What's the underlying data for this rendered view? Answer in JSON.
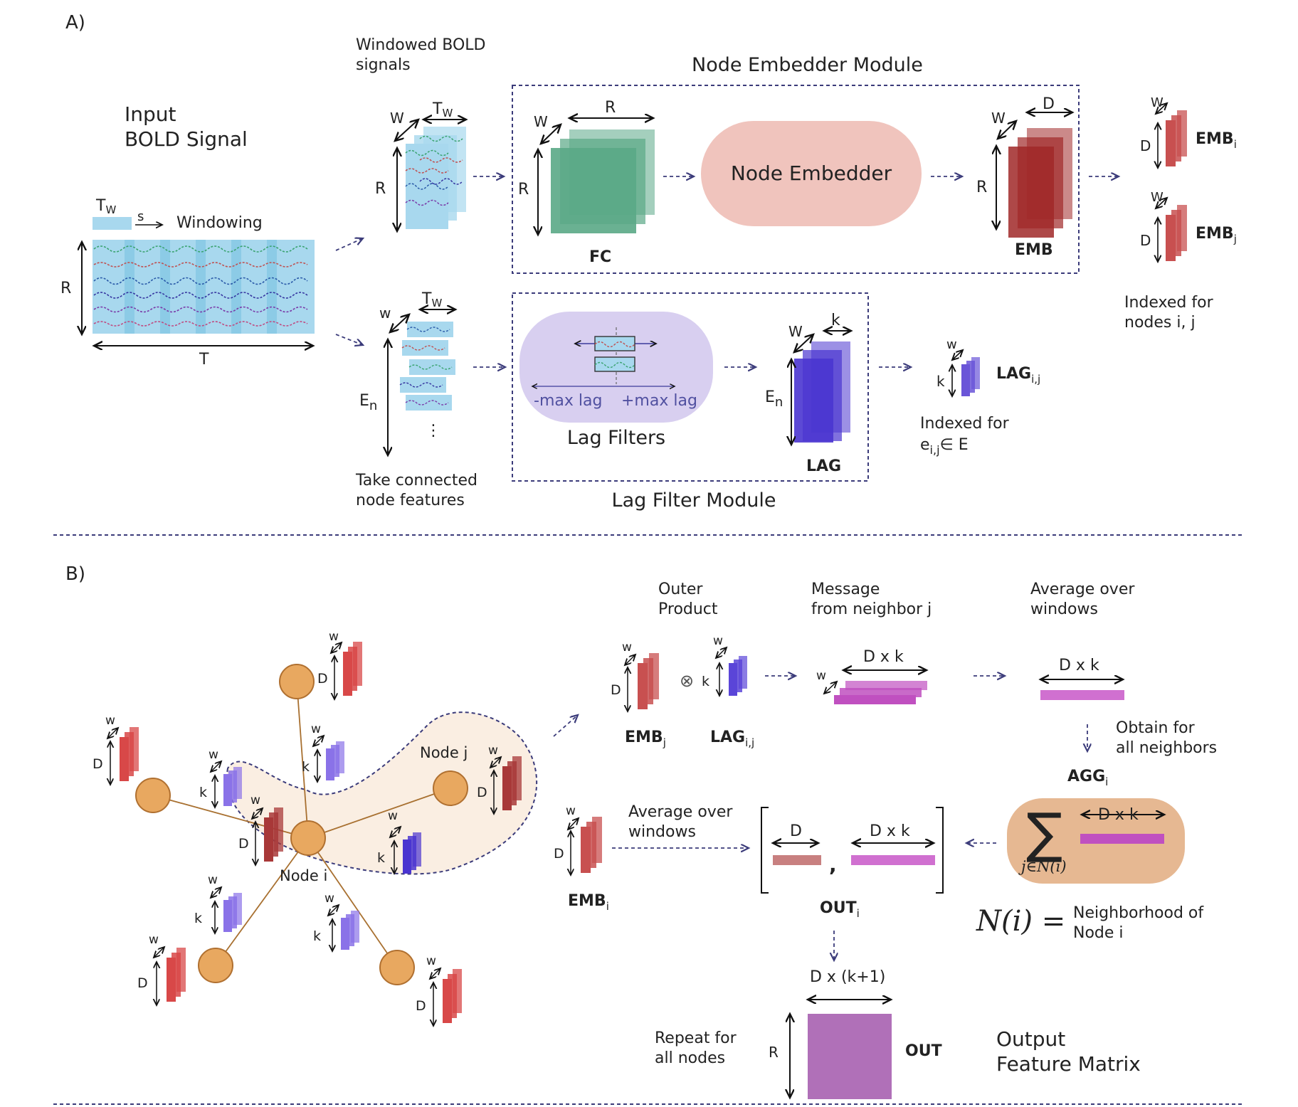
{
  "partA": {
    "label": "A)",
    "input": {
      "title1": "Input",
      "title2": "BOLD Signal",
      "tw": "T",
      "tw_sub": "W",
      "s": "s",
      "windowing": "Windowing",
      "r": "R",
      "t": "T"
    },
    "windowed": {
      "title1": "Windowed BOLD",
      "title2": "signals",
      "w": "W",
      "tw": "T",
      "tw_sub": "W",
      "r": "R"
    },
    "node_embedder_module": {
      "title": "Node Embedder Module",
      "w": "W",
      "r_top": "R",
      "r_side": "R",
      "fc": "FC",
      "embedder": "Node Embedder",
      "emb_w": "W",
      "emb_d": "D",
      "emb_r": "R",
      "emb": "EMB"
    },
    "emb_outputs": {
      "w1": "W",
      "d1": "D",
      "emb_i": "EMB",
      "emb_i_sub": "i",
      "w2": "W",
      "d2": "D",
      "emb_j": "EMB",
      "emb_j_sub": "j",
      "indexed1": "Indexed for",
      "indexed2": "nodes i, j"
    },
    "connected": {
      "w": "w",
      "e": "E",
      "e_sub": "n",
      "tw": "T",
      "tw_sub": "W",
      "dots": "⋮",
      "title1": "Take connected",
      "title2": "node features"
    },
    "lag_filter_module": {
      "title": "Lag Filter Module",
      "filters": "Lag Filters",
      "minus": "-max lag",
      "plus": "+max lag",
      "w": "W",
      "k": "k",
      "e": "E",
      "e_sub": "n",
      "lag": "LAG"
    },
    "lag_output": {
      "w": "w",
      "k": "k",
      "lag": "LAG",
      "lag_sub": "i,j",
      "indexed1": "Indexed for",
      "e": "e",
      "e_sub": "i,j",
      "in_e": "∈ E"
    }
  },
  "partB": {
    "label": "B)",
    "graph": {
      "node_i": "Node i",
      "node_j": "Node j",
      "w": "w",
      "d": "D",
      "k": "k"
    },
    "outer": {
      "title1": "Outer",
      "title2": "Product",
      "w": "w",
      "d": "D",
      "k": "k",
      "otimes": "⊗",
      "emb": "EMB",
      "emb_sub": "j",
      "lag": "LAG",
      "lag_sub": "i,j"
    },
    "message": {
      "title1": "Message",
      "title2": "from neighbor j",
      "dk": "D x k",
      "w": "w"
    },
    "average": {
      "title1": "Average over",
      "title2": "windows",
      "dk": "D x k"
    },
    "obtain": {
      "line1": "Obtain for",
      "line2": "all neighbors",
      "agg": "AGG",
      "agg_sub": "i"
    },
    "sum": {
      "sigma": "∑",
      "dk": "D x k",
      "subscript": "j∈N(i)"
    },
    "embi": {
      "w": "w",
      "d": "D",
      "emb": "EMB",
      "emb_sub": "i",
      "avg1": "Average over",
      "avg2": "windows"
    },
    "out": {
      "d": "D",
      "dk": "D x k",
      "comma": ",",
      "out": "OUT",
      "out_sub": "i"
    },
    "neighborhood": {
      "formula": "N(i) =",
      "text1": "Neighborhood of",
      "text2": "Node i"
    },
    "final": {
      "dk1": "D x (k+1)",
      "repeat1": "Repeat for",
      "repeat2": "all nodes",
      "r": "R",
      "out": "OUT",
      "title1": "Output",
      "title2": "Feature Matrix"
    }
  },
  "colors": {
    "dash": "#3b3b7a",
    "fc": "#5aa886",
    "embedder_fill": "#f0c4bd",
    "emb": "#a02828",
    "emb_small": "#c85050",
    "lag_fill": "#d8cff0",
    "lag": "#4a35d0",
    "lag_small": "#6a55d8",
    "node": "#e8a860",
    "node_stroke": "#b07030",
    "edge": "#a87030",
    "region": "#faeee2",
    "msg": "#c050c0",
    "avg": "#d070d0",
    "sum_fill": "#e6b892",
    "out_d": "#c88080",
    "out_matrix": "#b070b8",
    "signal_bg": "#a8d8ee"
  }
}
